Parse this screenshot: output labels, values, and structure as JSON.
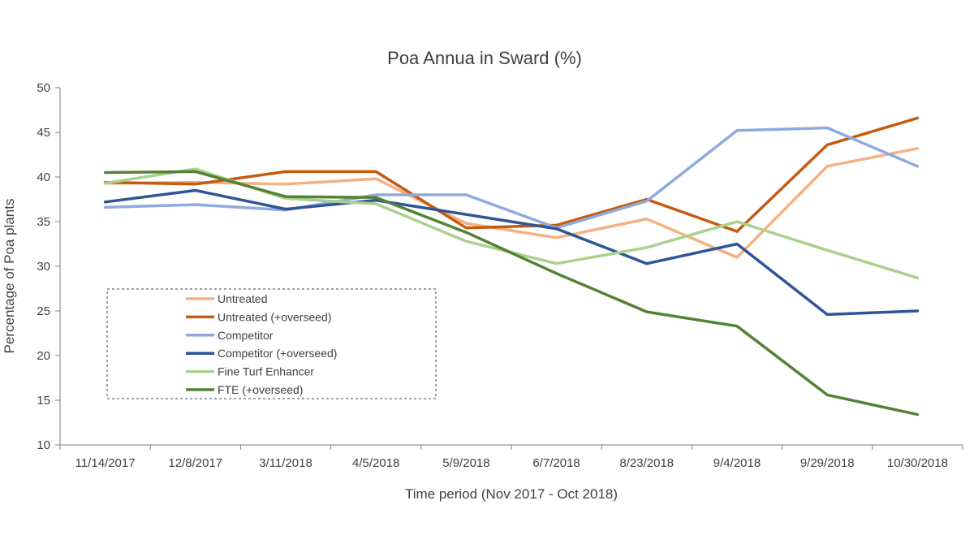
{
  "chart_data": {
    "type": "line",
    "title": "Poa Annua in Sward (%)",
    "xlabel": "Time period (Nov 2017 - Oct 2018)",
    "ylabel": "Percentage of Poa plants",
    "ylim": [
      10,
      50
    ],
    "yticks": [
      10,
      15,
      20,
      25,
      30,
      35,
      40,
      45,
      50
    ],
    "grid": false,
    "legend_position": "left",
    "categories": [
      "11/14/2017",
      "12/8/2017",
      "3/11/2018",
      "4/5/2018",
      "5/9/2018",
      "6/7/2018",
      "8/23/2018",
      "9/4/2018",
      "9/29/2018",
      "10/30/2018"
    ],
    "series": [
      {
        "name": "Untreated",
        "color": "#F4B183",
        "values": [
          39.3,
          39.4,
          39.2,
          39.8,
          34.8,
          33.2,
          35.3,
          31.0,
          41.2,
          43.2
        ]
      },
      {
        "name": "Untreated (+overseed)",
        "color": "#C55A11",
        "values": [
          39.4,
          39.2,
          40.6,
          40.6,
          34.3,
          34.6,
          37.5,
          33.9,
          43.6,
          46.6
        ]
      },
      {
        "name": "Competitor",
        "color": "#8FAADC",
        "values": [
          36.6,
          36.9,
          36.3,
          38.0,
          38.0,
          34.3,
          37.3,
          45.2,
          45.5,
          41.2
        ]
      },
      {
        "name": "Competitor (+overseed)",
        "color": "#2F5597",
        "values": [
          37.2,
          38.5,
          36.4,
          37.4,
          35.8,
          34.2,
          30.3,
          32.5,
          24.6,
          25.0
        ]
      },
      {
        "name": "Fine Turf Enhancer",
        "color": "#A9D18E",
        "values": [
          39.3,
          40.9,
          37.6,
          37.0,
          32.8,
          30.3,
          32.1,
          35.0,
          31.8,
          28.7
        ]
      },
      {
        "name": "FTE (+overseed)",
        "color": "#548235",
        "values": [
          40.5,
          40.6,
          37.8,
          37.7,
          33.8,
          29.2,
          24.9,
          23.3,
          15.6,
          13.4
        ]
      }
    ]
  }
}
